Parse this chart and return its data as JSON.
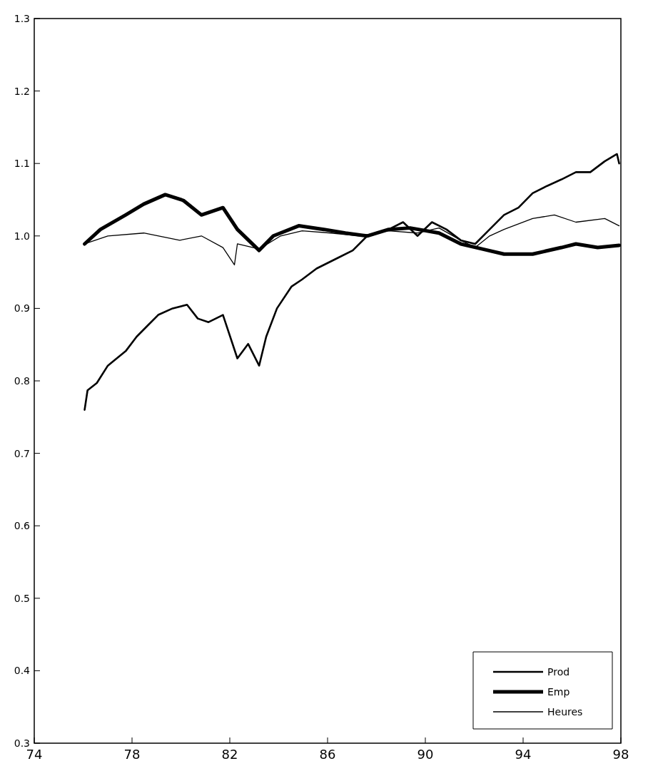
{
  "chart_data": {
    "type": "line",
    "xlim": [
      74,
      98
    ],
    "xticks": [
      74,
      78,
      82,
      86,
      90,
      94,
      98
    ],
    "ylim": [
      0.3,
      1.3
    ],
    "yticks": [
      0.3,
      0.4,
      0.5,
      0.6,
      0.7,
      0.8,
      0.9,
      {
        "value": 1,
        "label": "1.0"
      },
      1.1,
      1.2,
      1.3
    ],
    "grid": false,
    "legend": "bottom right",
    "line_style": "solid",
    "series": [
      {
        "name": "Prod",
        "color": "#000000",
        "x": [
          76.06,
          76.18,
          76.56,
          77.01,
          77.74,
          78.19,
          78.63,
          79.07,
          79.66,
          80.25,
          80.69,
          81.13,
          81.72,
          82.31,
          82.75,
          83.2,
          83.49,
          83.93,
          84.52,
          84.96,
          85.55,
          86.44,
          87.03,
          87.62,
          88.5,
          89.09,
          89.68,
          90.27,
          90.86,
          91.45,
          92.04,
          92.63,
          93.22,
          93.81,
          94.39,
          94.98,
          95.57,
          96.16,
          96.75,
          97.34,
          97.84,
          97.93
        ],
        "values": [
          0.76,
          0.787,
          0.797,
          0.821,
          0.841,
          0.861,
          0.876,
          0.891,
          0.9,
          0.905,
          0.886,
          0.881,
          0.891,
          0.831,
          0.851,
          0.821,
          0.861,
          0.9,
          0.93,
          0.94,
          0.955,
          0.97,
          0.98,
          1.0,
          1.009,
          1.019,
          1.0,
          1.019,
          1.009,
          0.994,
          0.989,
          1.009,
          1.029,
          1.039,
          1.059,
          1.069,
          1.078,
          1.088,
          1.088,
          1.103,
          1.113,
          1.1
        ]
      },
      {
        "name": "Emp",
        "color": "#000000",
        "x": [
          76.06,
          76.71,
          77.74,
          78.48,
          79.36,
          80.1,
          80.84,
          81.72,
          82.31,
          83.2,
          83.78,
          84.82,
          85.85,
          86.73,
          87.62,
          88.5,
          89.38,
          90.56,
          91.45,
          92.33,
          93.22,
          94.39,
          95.57,
          96.16,
          97.05,
          97.93
        ],
        "values": [
          0.989,
          1.009,
          1.029,
          1.044,
          1.057,
          1.049,
          1.029,
          1.039,
          1.009,
          0.98,
          1.0,
          1.014,
          1.009,
          1.004,
          1.0,
          1.009,
          1.011,
          1.004,
          0.989,
          0.982,
          0.975,
          0.975,
          0.984,
          0.989,
          0.984,
          0.987
        ]
      },
      {
        "name": "Heures",
        "color": "#000000",
        "x": [
          76.06,
          77.01,
          78.48,
          79.95,
          80.84,
          81.72,
          82.19,
          82.31,
          83.2,
          84.08,
          84.96,
          86.14,
          87.32,
          88.5,
          89.68,
          90.56,
          91.45,
          92.04,
          92.63,
          93.22,
          94.39,
          95.28,
          96.16,
          97.34,
          97.93
        ],
        "values": [
          0.989,
          1.0,
          1.004,
          0.994,
          1.0,
          0.984,
          0.96,
          0.989,
          0.982,
          1.0,
          1.007,
          1.004,
          1.0,
          1.007,
          1.004,
          1.011,
          0.994,
          0.984,
          1.0,
          1.009,
          1.024,
          1.029,
          1.019,
          1.024,
          1.014
        ]
      }
    ]
  }
}
